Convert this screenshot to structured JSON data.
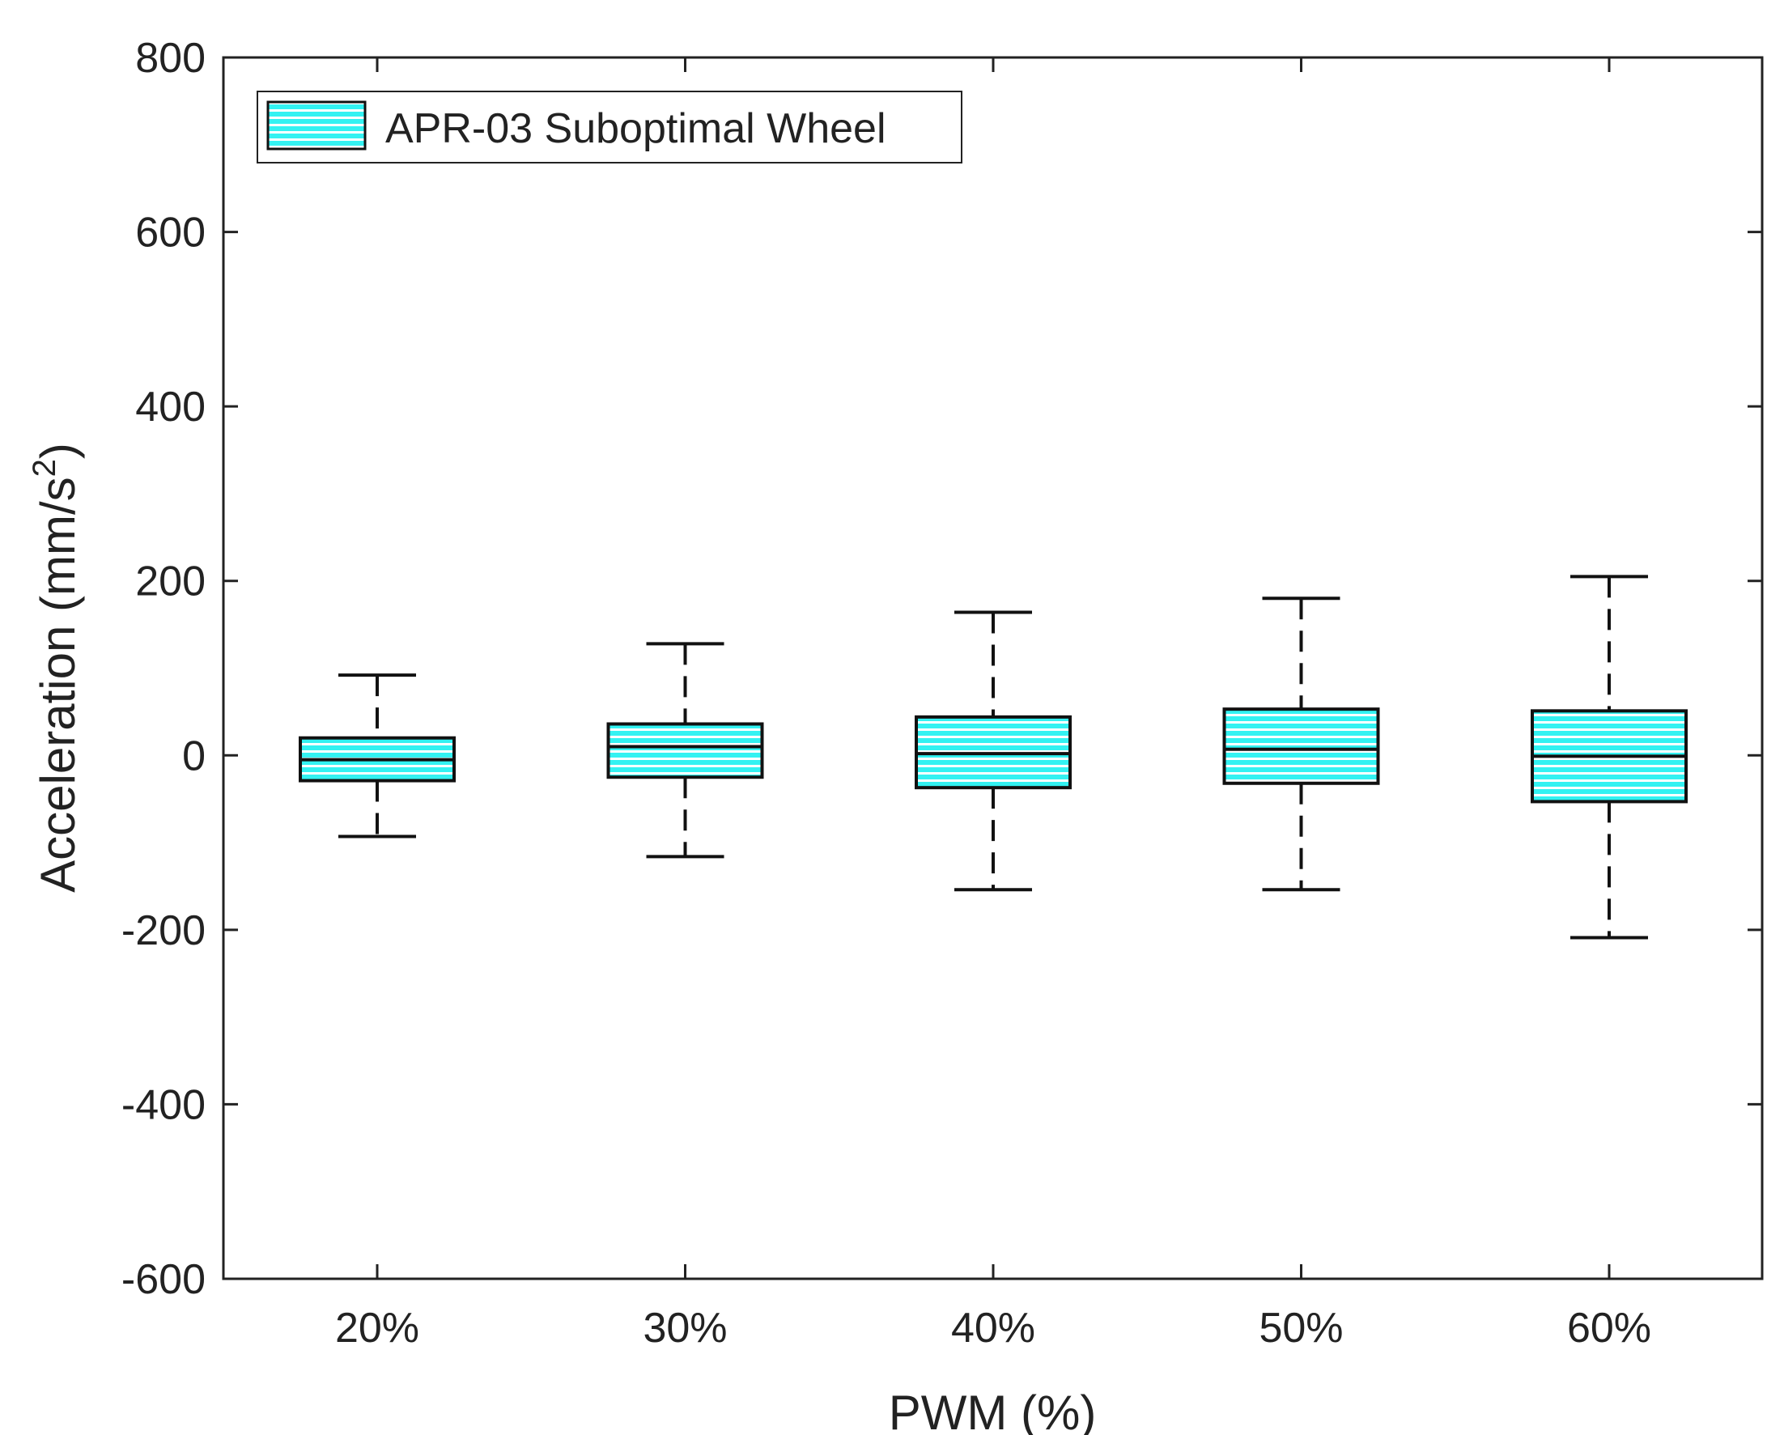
{
  "chart_data": {
    "type": "boxplot",
    "title": "",
    "xlabel": "PWM (%)",
    "ylabel_main": "Acceleration (mm/s",
    "ylabel_sup": "2",
    "ylabel_tail": ")",
    "ylim": [
      -600,
      800
    ],
    "yticks": [
      800,
      600,
      400,
      200,
      0,
      -200,
      -400,
      -600
    ],
    "ytick_labels": [
      "800",
      "600",
      "400",
      "200",
      "0",
      "-200",
      "-400",
      "-600"
    ],
    "categories": [
      "20%",
      "30%",
      "40%",
      "50%",
      "60%"
    ],
    "legend": {
      "label": "APR-03 Suboptimal Wheel",
      "placement": "top-left"
    },
    "series": [
      {
        "name": "APR-03 Suboptimal Wheel",
        "color": "#33f2f2",
        "stripe_color": "#ffffff",
        "boxes": [
          {
            "category": "20%",
            "whisker_low": -93,
            "q1": -29,
            "median": -5,
            "q3": 20,
            "whisker_high": 92
          },
          {
            "category": "30%",
            "whisker_low": -116,
            "q1": -25,
            "median": 10,
            "q3": 36,
            "whisker_high": 128
          },
          {
            "category": "40%",
            "whisker_low": -154,
            "q1": -37,
            "median": 2,
            "q3": 44,
            "whisker_high": 164
          },
          {
            "category": "50%",
            "whisker_low": -154,
            "q1": -32,
            "median": 7,
            "q3": 53,
            "whisker_high": 180
          },
          {
            "category": "60%",
            "whisker_low": -209,
            "q1": -53,
            "median": -1,
            "q3": 51,
            "whisker_high": 205
          }
        ]
      }
    ]
  }
}
